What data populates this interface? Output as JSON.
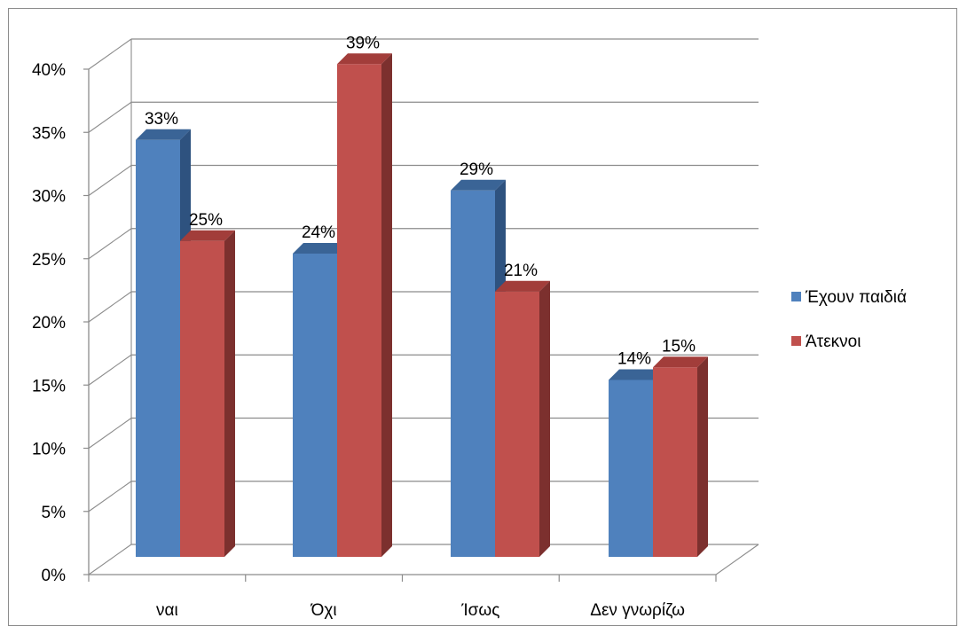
{
  "chart_data": {
    "type": "bar",
    "categories": [
      "ναι",
      "Όχι",
      "Ίσως",
      "Δεν γνωρίζω"
    ],
    "series": [
      {
        "name": "Έχουν παιδιά",
        "values": [
          33,
          24,
          29,
          14
        ],
        "labels": [
          "33%",
          "24%",
          "29%",
          "14%"
        ],
        "color": "#4f81bd",
        "top_color": "#3a6496",
        "side_color": "#2e527f"
      },
      {
        "name": "Άτεκνοι",
        "values": [
          25,
          39,
          21,
          15
        ],
        "labels": [
          "25%",
          "39%",
          "21%",
          "15%"
        ],
        "color": "#c0504d",
        "top_color": "#a23d3a",
        "side_color": "#7c302e"
      }
    ],
    "ylim": [
      0,
      40
    ],
    "y_ticks": [
      0,
      5,
      10,
      15,
      20,
      25,
      30,
      35,
      40
    ],
    "y_tick_labels": [
      "0%",
      "5%",
      "10%",
      "15%",
      "20%",
      "25%",
      "30%",
      "35%",
      "40%"
    ],
    "grid": true,
    "legend_position": "right",
    "title": "",
    "xlabel": "",
    "ylabel": ""
  }
}
